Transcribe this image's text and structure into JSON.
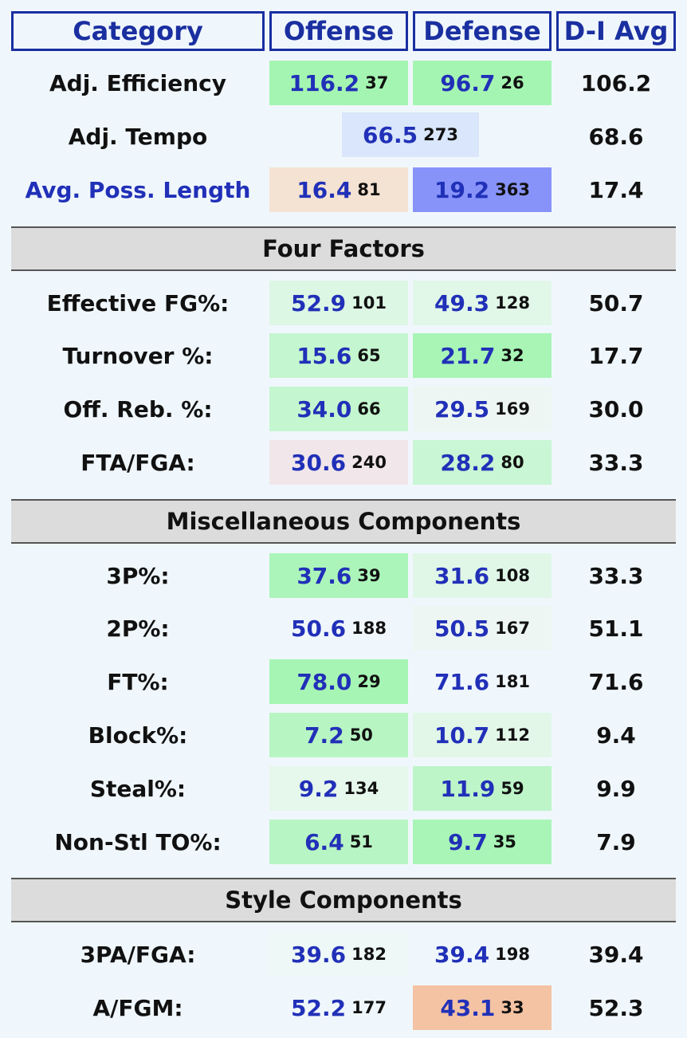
{
  "headers": {
    "category": "Category",
    "offense": "Offense",
    "defense": "Defense",
    "avg": "D-I Avg"
  },
  "rows": {
    "adj_eff": {
      "label": "Adj. Efficiency",
      "off": "116.2",
      "off_rank": "37",
      "def": "96.7",
      "def_rank": "26",
      "avg": "106.2",
      "off_color": "#a5f5b2",
      "def_color": "#a5f5b2"
    },
    "adj_tempo": {
      "label": "Adj. Tempo",
      "val": "66.5",
      "rank": "273",
      "avg": "68.6",
      "color": "#d9e6fb"
    },
    "poss_len": {
      "label": "Avg. Poss. Length",
      "off": "16.4",
      "off_rank": "81",
      "def": "19.2",
      "def_rank": "363",
      "avg": "17.4",
      "off_color": "#f4e2d2",
      "def_color": "#8793f9"
    },
    "efg": {
      "label": "Effective FG%:",
      "off": "52.9",
      "off_rank": "101",
      "def": "49.3",
      "def_rank": "128",
      "avg": "50.7",
      "off_color": "#dcf7e4",
      "def_color": "#e1f7e8"
    },
    "to": {
      "label": "Turnover %:",
      "off": "15.6",
      "off_rank": "65",
      "def": "21.7",
      "def_rank": "32",
      "avg": "17.7",
      "off_color": "#c4f6cf",
      "def_color": "#a8f5b6"
    },
    "oreb": {
      "label": "Off. Reb. %:",
      "off": "34.0",
      "off_rank": "66",
      "def": "29.5",
      "def_rank": "169",
      "avg": "30.0",
      "off_color": "#c4f6cf",
      "def_color": "#edf6f3"
    },
    "fta": {
      "label": "FTA/FGA:",
      "off": "30.6",
      "off_rank": "240",
      "def": "28.2",
      "def_rank": "80",
      "avg": "33.3",
      "off_color": "#f1e7ea",
      "def_color": "#c9f6d4"
    },
    "p3": {
      "label": "3P%:",
      "off": "37.6",
      "off_rank": "39",
      "def": "31.6",
      "def_rank": "108",
      "avg": "33.3",
      "off_color": "#acf5ba",
      "def_color": "#e0f7e7"
    },
    "p2": {
      "label": "2P%:",
      "off": "50.6",
      "off_rank": "188",
      "def": "50.5",
      "def_rank": "167",
      "avg": "51.1",
      "off_color": "#f0f7fc",
      "def_color": "#edf6f3"
    },
    "ft": {
      "label": "FT%:",
      "off": "78.0",
      "off_rank": "29",
      "def": "71.6",
      "def_rank": "181",
      "avg": "71.6",
      "off_color": "#a6f5b4",
      "def_color": "#f0f7fc"
    },
    "blk": {
      "label": "Block%:",
      "off": "7.2",
      "off_rank": "50",
      "def": "10.7",
      "def_rank": "112",
      "avg": "9.4",
      "off_color": "#b7f5c3",
      "def_color": "#e2f7e8"
    },
    "stl": {
      "label": "Steal%:",
      "off": "9.2",
      "off_rank": "134",
      "def": "11.9",
      "def_rank": "59",
      "avg": "9.9",
      "off_color": "#e6f7ec",
      "def_color": "#bdf5c8"
    },
    "nstl": {
      "label": "Non-Stl TO%:",
      "off": "6.4",
      "off_rank": "51",
      "def": "9.7",
      "def_rank": "35",
      "avg": "7.9",
      "off_color": "#b8f5c4",
      "def_color": "#a9f5b7"
    },
    "pa3": {
      "label": "3PA/FGA:",
      "off": "39.6",
      "off_rank": "182",
      "def": "39.4",
      "def_rank": "198",
      "avg": "39.4",
      "off_color": "#eef8f6",
      "def_color": "#f0f7fc"
    },
    "afgm": {
      "label": "A/FGM:",
      "off": "52.2",
      "off_rank": "177",
      "def": "43.1",
      "def_rank": "33",
      "avg": "52.3",
      "off_color": "#f0f7fc",
      "def_color": "#f4c3a3"
    }
  },
  "sections": {
    "four_factors": "Four Factors",
    "misc": "Miscellaneous Components",
    "style": "Style Components"
  }
}
